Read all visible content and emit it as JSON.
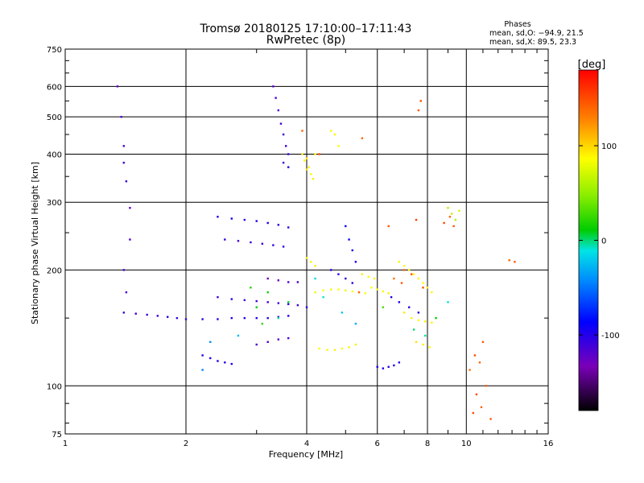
{
  "chart_data": {
    "type": "scatter",
    "title": "Tromsø 20180125 17:10:00–17:11:43",
    "subtitle": "RwPretec (8p)",
    "xlabel": "Frequency [MHz]",
    "ylabel": "Stationary phase Virtual Height [km]",
    "x_scale": "log",
    "y_scale": "log",
    "xlim": [
      1,
      16
    ],
    "ylim": [
      75,
      750
    ],
    "x_ticks": [
      1,
      2,
      4,
      6,
      8,
      10,
      16
    ],
    "y_ticks": [
      75,
      100,
      200,
      300,
      400,
      500,
      600,
      750
    ],
    "grid": true,
    "colorbar": {
      "label": "[deg]",
      "min": -180,
      "max": 180,
      "ticks": [
        100,
        0,
        -100
      ]
    },
    "phases_box": {
      "title": "Phases",
      "line_o": "mean, sd,O: −94.9, 21.5",
      "line_x": "mean, sd,X:  89.5, 23.3"
    },
    "series": [
      {
        "values": [
          [
            1.4,
            155,
            -108
          ],
          [
            1.5,
            154,
            -110
          ],
          [
            1.6,
            153,
            -112
          ],
          [
            1.7,
            152,
            -110
          ],
          [
            1.8,
            151,
            -105
          ],
          [
            1.9,
            150,
            -108
          ],
          [
            2.0,
            149,
            -110
          ],
          [
            2.2,
            149,
            -105
          ],
          [
            2.4,
            149,
            -100
          ],
          [
            2.6,
            150,
            -98
          ],
          [
            2.8,
            150,
            -100
          ],
          [
            3.0,
            150,
            -95
          ],
          [
            3.2,
            150,
            -100
          ],
          [
            3.4,
            151,
            -105
          ],
          [
            3.6,
            152,
            -100
          ],
          [
            2.4,
            170,
            -110
          ],
          [
            2.6,
            168,
            -105
          ],
          [
            2.8,
            167,
            -110
          ],
          [
            3.0,
            166,
            -115
          ],
          [
            3.2,
            165,
            -110
          ],
          [
            3.4,
            164,
            -112
          ],
          [
            3.6,
            163,
            -108
          ],
          [
            3.8,
            162,
            -110
          ],
          [
            4.0,
            160,
            -105
          ],
          [
            2.4,
            275,
            -100
          ],
          [
            2.6,
            272,
            -95
          ],
          [
            2.8,
            270,
            -100
          ],
          [
            3.0,
            268,
            -100
          ],
          [
            3.2,
            265,
            -98
          ],
          [
            3.4,
            262,
            -100
          ],
          [
            3.6,
            258,
            -105
          ],
          [
            2.5,
            240,
            -108
          ],
          [
            2.7,
            238,
            -110
          ],
          [
            2.9,
            236,
            -112
          ],
          [
            3.1,
            234,
            -110
          ],
          [
            3.3,
            232,
            -108
          ],
          [
            3.5,
            230,
            -105
          ],
          [
            3.3,
            600,
            -120
          ],
          [
            3.35,
            560,
            -118
          ],
          [
            3.4,
            520,
            -115
          ],
          [
            3.45,
            480,
            -112
          ],
          [
            3.5,
            450,
            -110
          ],
          [
            3.55,
            420,
            -108
          ],
          [
            3.6,
            400,
            -105
          ],
          [
            3.5,
            380,
            -110
          ],
          [
            3.6,
            370,
            -100
          ],
          [
            3.2,
            190,
            -130
          ],
          [
            3.4,
            188,
            -125
          ],
          [
            3.6,
            186,
            -120
          ],
          [
            3.8,
            186,
            -110
          ],
          [
            2.2,
            120,
            -100
          ],
          [
            2.3,
            118,
            -98
          ],
          [
            2.4,
            116,
            -95
          ],
          [
            2.5,
            115,
            -98
          ],
          [
            2.6,
            114,
            -100
          ],
          [
            3.0,
            128,
            -115
          ],
          [
            3.2,
            130,
            -118
          ],
          [
            3.4,
            132,
            -120
          ],
          [
            3.6,
            133,
            -115
          ],
          [
            5.0,
            260,
            -90
          ],
          [
            5.1,
            240,
            -92
          ],
          [
            5.2,
            225,
            -95
          ],
          [
            5.3,
            210,
            -98
          ],
          [
            6.0,
            112,
            -100
          ],
          [
            6.2,
            111,
            -98
          ],
          [
            6.4,
            112,
            -102
          ],
          [
            6.6,
            113,
            -100
          ],
          [
            6.8,
            115,
            -98
          ],
          [
            4.6,
            200,
            -105
          ],
          [
            4.8,
            195,
            -100
          ],
          [
            5.0,
            190,
            -102
          ],
          [
            5.2,
            185,
            -105
          ],
          [
            1.35,
            600,
            -120
          ],
          [
            1.38,
            500,
            -118
          ],
          [
            1.4,
            420,
            -115
          ],
          [
            1.4,
            380,
            -112
          ],
          [
            1.42,
            340,
            -110
          ],
          [
            1.45,
            290,
            -120
          ],
          [
            1.45,
            240,
            -118
          ],
          [
            1.4,
            200,
            -115
          ],
          [
            1.42,
            175,
            -112
          ],
          [
            6.5,
            170,
            -100
          ],
          [
            6.8,
            165,
            -98
          ],
          [
            7.2,
            160,
            -102
          ],
          [
            7.6,
            155,
            -100
          ]
        ]
      },
      {
        "values": [
          [
            3.9,
            400,
            92
          ],
          [
            4.0,
            390,
            95
          ],
          [
            4.05,
            370,
            90
          ],
          [
            4.1,
            355,
            88
          ],
          [
            4.15,
            345,
            92
          ],
          [
            4.2,
            400,
            85
          ],
          [
            3.95,
            385,
            90
          ],
          [
            4.0,
            365,
            95
          ],
          [
            4.3,
            125,
            85
          ],
          [
            4.5,
            124,
            90
          ],
          [
            4.7,
            124,
            92
          ],
          [
            4.9,
            125,
            88
          ],
          [
            5.1,
            126,
            90
          ],
          [
            5.3,
            128,
            92
          ],
          [
            4.2,
            175,
            80
          ],
          [
            4.4,
            177,
            85
          ],
          [
            4.6,
            178,
            90
          ],
          [
            4.8,
            178,
            88
          ],
          [
            5.0,
            177,
            92
          ],
          [
            5.2,
            176,
            85
          ],
          [
            5.4,
            175,
            90
          ],
          [
            5.6,
            174,
            88
          ],
          [
            6.8,
            210,
            80
          ],
          [
            7.0,
            205,
            85
          ],
          [
            7.2,
            200,
            90
          ],
          [
            7.4,
            195,
            88
          ],
          [
            7.6,
            190,
            92
          ],
          [
            7.8,
            185,
            85
          ],
          [
            8.0,
            180,
            90
          ],
          [
            8.2,
            175,
            88
          ],
          [
            7.0,
            155,
            95
          ],
          [
            7.3,
            150,
            90
          ],
          [
            7.6,
            148,
            88
          ],
          [
            7.9,
            147,
            92
          ],
          [
            8.2,
            146,
            90
          ],
          [
            7.5,
            130,
            95
          ],
          [
            7.8,
            128,
            92
          ],
          [
            8.1,
            126,
            88
          ],
          [
            5.8,
            180,
            85
          ],
          [
            6.0,
            178,
            90
          ],
          [
            6.2,
            176,
            88
          ],
          [
            6.4,
            174,
            92
          ],
          [
            5.5,
            195,
            92
          ],
          [
            5.7,
            192,
            88
          ],
          [
            5.9,
            190,
            90
          ],
          [
            9.0,
            290,
            60
          ],
          [
            9.2,
            280,
            65
          ],
          [
            9.4,
            270,
            55
          ],
          [
            9.6,
            285,
            70
          ],
          [
            4.0,
            215,
            90
          ],
          [
            4.1,
            210,
            85
          ],
          [
            4.2,
            205,
            92
          ],
          [
            4.6,
            460,
            85
          ],
          [
            4.7,
            450,
            90
          ],
          [
            4.8,
            420,
            88
          ]
        ]
      },
      {
        "values": [
          [
            10.5,
            120,
            150
          ],
          [
            10.8,
            115,
            140
          ],
          [
            11.0,
            130,
            145
          ],
          [
            10.2,
            110,
            135
          ],
          [
            10.6,
            95,
            150
          ],
          [
            11.2,
            100,
            145
          ],
          [
            10.9,
            88,
            140
          ],
          [
            10.4,
            85,
            150
          ],
          [
            11.5,
            82,
            145
          ],
          [
            7.0,
            200,
            140
          ],
          [
            7.3,
            195,
            150
          ],
          [
            6.6,
            190,
            135
          ],
          [
            6.4,
            260,
            145
          ],
          [
            8.8,
            265,
            150
          ],
          [
            9.1,
            275,
            140
          ],
          [
            9.3,
            260,
            145
          ],
          [
            3.9,
            460,
            140
          ],
          [
            4.3,
            400,
            150
          ],
          [
            5.4,
            175,
            140
          ],
          [
            6.9,
            185,
            145
          ],
          [
            7.5,
            270,
            155
          ],
          [
            7.8,
            180,
            150
          ],
          [
            12.8,
            212,
            140
          ],
          [
            13.2,
            210,
            145
          ],
          [
            7.7,
            550,
            150
          ],
          [
            7.6,
            520,
            145
          ],
          [
            5.5,
            440,
            140
          ]
        ]
      },
      {
        "values": [
          [
            3.0,
            160,
            10
          ],
          [
            3.2,
            175,
            15
          ],
          [
            3.4,
            150,
            -5
          ],
          [
            2.9,
            180,
            20
          ],
          [
            3.6,
            165,
            5
          ],
          [
            4.4,
            170,
            -10
          ],
          [
            4.2,
            190,
            -15
          ],
          [
            4.9,
            155,
            -20
          ],
          [
            3.1,
            145,
            25
          ],
          [
            2.7,
            135,
            -25
          ],
          [
            5.3,
            145,
            -30
          ],
          [
            6.2,
            160,
            30
          ],
          [
            7.4,
            140,
            0
          ],
          [
            7.9,
            135,
            -5
          ],
          [
            8.4,
            150,
            10
          ],
          [
            9.0,
            165,
            -10
          ],
          [
            2.3,
            130,
            -40
          ],
          [
            2.2,
            110,
            -45
          ]
        ]
      }
    ]
  }
}
